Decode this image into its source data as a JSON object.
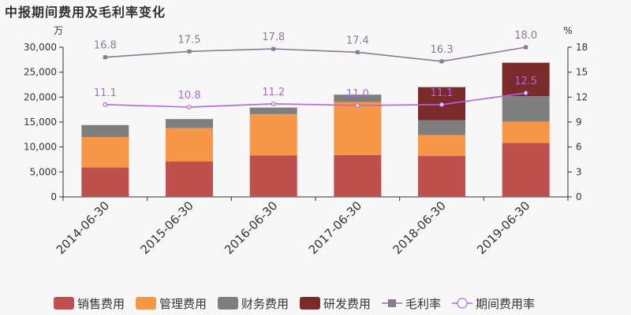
{
  "chart_data": {
    "type": "bar",
    "title": "中报期间费用及毛利率变化",
    "stacked": true,
    "left_axis_unit": "万",
    "right_axis_unit": "%",
    "categories": [
      "2014-06-30",
      "2015-06-30",
      "2016-06-30",
      "2017-06-30",
      "2018-06-30",
      "2019-06-30"
    ],
    "ylim_left": [
      0,
      30000
    ],
    "yticks_left": [
      "0",
      "5,000",
      "10,000",
      "15,000",
      "20,000",
      "25,000",
      "30,000"
    ],
    "ylim_right": [
      0,
      18
    ],
    "yticks_right": [
      "0",
      "3",
      "6",
      "9",
      "12",
      "15",
      "18"
    ],
    "series": [
      {
        "name": "销售费用",
        "kind": "bar",
        "color": "#c0504d",
        "values": [
          5900,
          7100,
          8300,
          8400,
          8200,
          10800
        ]
      },
      {
        "name": "管理费用",
        "kind": "bar",
        "color": "#f79646",
        "values": [
          6100,
          6700,
          8300,
          10600,
          4200,
          4300
        ]
      },
      {
        "name": "财务费用",
        "kind": "bar",
        "color": "#7f7f7f",
        "values": [
          2400,
          1800,
          1300,
          1500,
          3000,
          5100
        ]
      },
      {
        "name": "研发费用",
        "kind": "bar",
        "color": "#7b2a2a",
        "values": [
          0,
          0,
          0,
          0,
          6600,
          6700
        ]
      },
      {
        "name": "毛利率",
        "kind": "line",
        "axis": "right",
        "color": "#8c7a93",
        "marker": "square",
        "values": [
          16.8,
          17.5,
          17.8,
          17.4,
          16.3,
          18.0
        ],
        "labels": [
          "16.8",
          "17.5",
          "17.8",
          "17.4",
          "16.3",
          "18.0"
        ]
      },
      {
        "name": "期间费用率",
        "kind": "line",
        "axis": "right",
        "color": "#b266e6",
        "marker": "circle",
        "values": [
          11.1,
          10.8,
          11.2,
          11.0,
          11.1,
          12.5
        ],
        "labels": [
          "11.1",
          "10.8",
          "11.2",
          "11.0",
          "11.1",
          "12.5"
        ]
      }
    ],
    "legend_position": "bottom",
    "grid": false
  }
}
